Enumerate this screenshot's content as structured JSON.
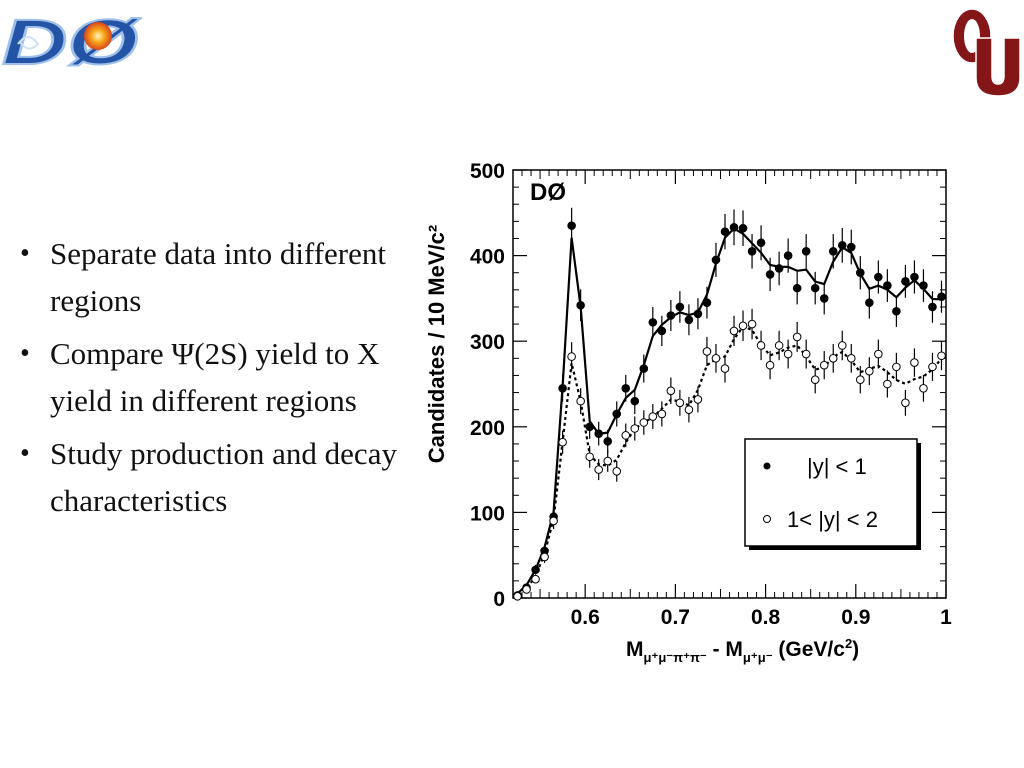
{
  "logos": {
    "left": "DØ",
    "right": "OU"
  },
  "bullets": [
    "Separate data into different regions",
    "Compare Ψ(2S) yield to X yield in different regions",
    "Study production and decay characteristics"
  ],
  "colors": {
    "ou_crimson": "#841617",
    "d0_blue": "#2454a6",
    "d0_sun": "#f7a81b"
  },
  "chart_data": {
    "type": "scatter",
    "label_inside": "DØ",
    "xlabel": "M_{μ⁺μ⁻π⁺π⁻} - M_{μ⁺μ⁻}  (GeV/c²)",
    "ylabel": "Candidates / 10 MeV/c²",
    "xlim": [
      0.52,
      1.0
    ],
    "ylim": [
      0,
      500
    ],
    "xticks": [
      "0.6",
      "0.7",
      "0.8",
      "0.9",
      "1"
    ],
    "yticks": [
      "0",
      "100",
      "200",
      "300",
      "400",
      "500"
    ],
    "legend_placement": "bottom-right",
    "series": [
      {
        "name": "|y| < 1",
        "marker": "filled",
        "x": [
          0.525,
          0.535,
          0.545,
          0.555,
          0.565,
          0.575,
          0.585,
          0.595,
          0.605,
          0.615,
          0.625,
          0.635,
          0.645,
          0.655,
          0.665,
          0.675,
          0.685,
          0.695,
          0.705,
          0.715,
          0.725,
          0.735,
          0.745,
          0.755,
          0.765,
          0.775,
          0.785,
          0.795,
          0.805,
          0.815,
          0.825,
          0.835,
          0.845,
          0.855,
          0.865,
          0.875,
          0.885,
          0.895,
          0.905,
          0.915,
          0.925,
          0.935,
          0.945,
          0.955,
          0.965,
          0.975,
          0.985,
          0.995
        ],
        "y": [
          3,
          12,
          33,
          55,
          95,
          245,
          435,
          342,
          200,
          192,
          183,
          215,
          245,
          230,
          268,
          322,
          312,
          330,
          340,
          325,
          332,
          345,
          395,
          428,
          433,
          432,
          405,
          415,
          378,
          385,
          400,
          362,
          405,
          362,
          350,
          405,
          412,
          410,
          380,
          345,
          375,
          365,
          335,
          370,
          375,
          365,
          340,
          352
        ]
      },
      {
        "name": "1< |y| < 2",
        "marker": "open",
        "x": [
          0.525,
          0.535,
          0.545,
          0.555,
          0.565,
          0.575,
          0.585,
          0.595,
          0.605,
          0.615,
          0.625,
          0.635,
          0.645,
          0.655,
          0.665,
          0.675,
          0.685,
          0.695,
          0.705,
          0.715,
          0.725,
          0.735,
          0.745,
          0.755,
          0.765,
          0.775,
          0.785,
          0.795,
          0.805,
          0.815,
          0.825,
          0.835,
          0.845,
          0.855,
          0.865,
          0.875,
          0.885,
          0.895,
          0.905,
          0.915,
          0.925,
          0.935,
          0.945,
          0.955,
          0.965,
          0.975,
          0.985,
          0.995
        ],
        "y": [
          2,
          10,
          22,
          48,
          90,
          182,
          282,
          230,
          165,
          150,
          160,
          148,
          190,
          198,
          205,
          212,
          215,
          242,
          228,
          220,
          232,
          288,
          280,
          268,
          312,
          318,
          320,
          295,
          272,
          295,
          285,
          305,
          285,
          255,
          272,
          280,
          295,
          280,
          255,
          265,
          285,
          250,
          270,
          228,
          275,
          245,
          270,
          283
        ]
      }
    ]
  }
}
